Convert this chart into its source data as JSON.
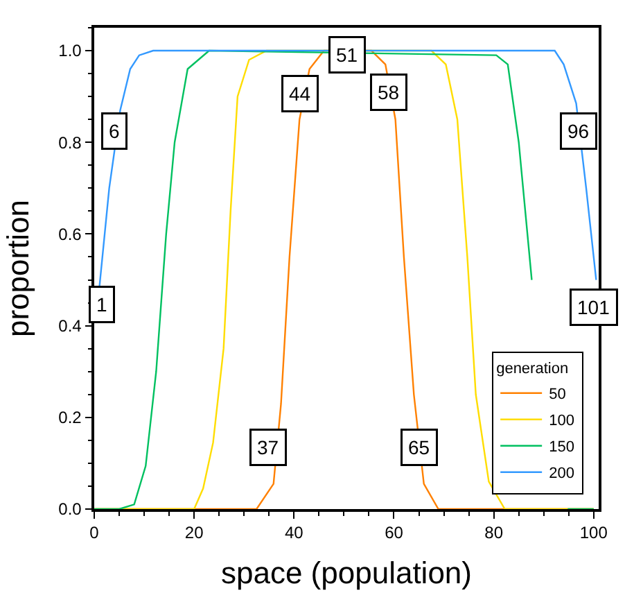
{
  "chart_data": {
    "type": "line",
    "xlabel": "space (population)",
    "ylabel": "proportion",
    "legend_title": "generation",
    "legend": "bottom right",
    "marker": "none",
    "line_style": "solid",
    "xlim": [
      0,
      101
    ],
    "xticks": [
      0,
      20,
      40,
      60,
      80,
      100
    ],
    "ylim": [
      0,
      1.05
    ],
    "yticks": [
      {
        "value": 0,
        "label": "0.0"
      },
      {
        "value": 0.2,
        "label": "0.2"
      },
      {
        "value": 0.4,
        "label": "0.4"
      },
      {
        "value": 0.6,
        "label": "0.6"
      },
      {
        "value": 0.8,
        "label": "0.8"
      },
      {
        "value": 1,
        "label": "1.0"
      }
    ],
    "series": [
      {
        "name": "50",
        "color": "#ff8000",
        "x": [
          0,
          32.5,
          35.9,
          37.4,
          39.1,
          41.1,
          43.1,
          46,
          55.5,
          58.3,
          60.3,
          62,
          64,
          66,
          68.9,
          100
        ],
        "values": [
          0,
          0,
          0.055,
          0.23,
          0.55,
          0.85,
          0.96,
          1,
          1,
          0.97,
          0.85,
          0.55,
          0.25,
          0.055,
          0,
          0
        ]
      },
      {
        "name": "100",
        "color": "#ffdd00",
        "x": [
          0,
          20,
          21.8,
          23.8,
          25.9,
          27.3,
          28.7,
          31,
          34.5,
          67.5,
          70.4,
          72.7,
          74.7,
          76.4,
          79,
          82.2,
          100
        ],
        "values": [
          0,
          0,
          0.045,
          0.145,
          0.35,
          0.65,
          0.9,
          0.98,
          1,
          1,
          0.97,
          0.85,
          0.55,
          0.25,
          0.06,
          0,
          0
        ]
      },
      {
        "name": "150",
        "color": "#00c060",
        "x": [
          0,
          5,
          8,
          10.3,
          12.4,
          14.4,
          16.1,
          18.7,
          23,
          80.5,
          82.8,
          85,
          87.6,
          89,
          90.8,
          94.8,
          100
        ],
        "values": [
          0,
          0,
          0.01,
          0.094,
          0.3,
          0.6,
          0.8,
          0.96,
          1,
          0.99,
          0.97,
          0.8,
          0.5,
          null,
          null,
          0,
          0
        ]
      },
      {
        "name": "200",
        "color": "#3399ff",
        "x": [
          1,
          3,
          5.2,
          7.2,
          9,
          11.8,
          92.2,
          94,
          96.5,
          98.5,
          100.5
        ],
        "values": [
          0.48,
          0.7,
          0.87,
          0.96,
          0.99,
          1,
          1,
          0.97,
          0.885,
          0.7,
          0.5
        ]
      }
    ],
    "annotations": [
      {
        "text": "1",
        "x": 1.4,
        "y": 0.447
      },
      {
        "text": "6",
        "x": 4,
        "y": 0.825
      },
      {
        "text": "44",
        "x": 41.1,
        "y": 0.906
      },
      {
        "text": "51",
        "x": 50.6,
        "y": 0.99
      },
      {
        "text": "58",
        "x": 58.9,
        "y": 0.91
      },
      {
        "text": "37",
        "x": 34.8,
        "y": 0.136
      },
      {
        "text": "65",
        "x": 65,
        "y": 0.136
      },
      {
        "text": "96",
        "x": 97,
        "y": 0.825
      },
      {
        "text": "101",
        "x": 100,
        "y": 0.44
      }
    ]
  }
}
